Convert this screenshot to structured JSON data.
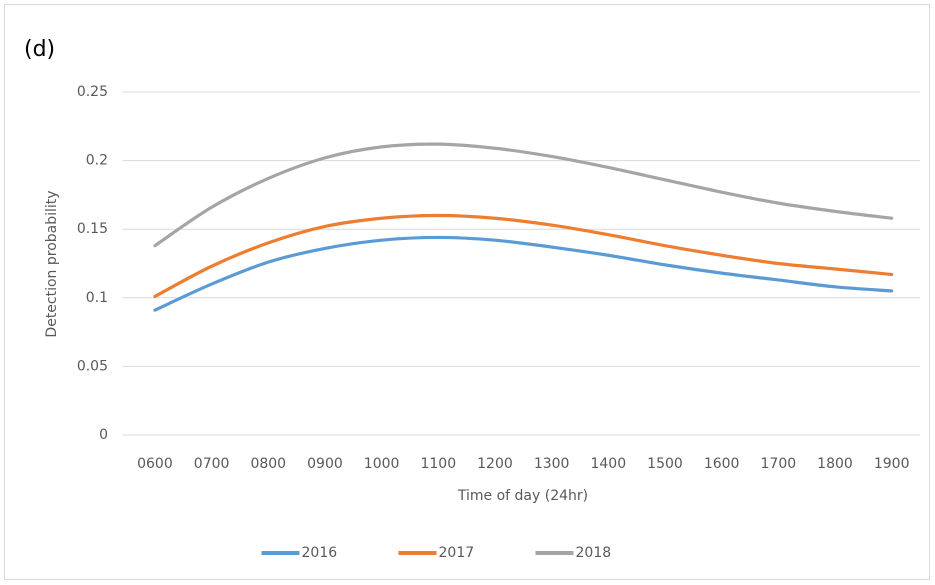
{
  "chart_data": {
    "type": "line",
    "title": "(d)",
    "x_label": "Time of day (24hr)",
    "y_label": "Detection probability",
    "categories": [
      "0600",
      "0700",
      "0800",
      "0900",
      "1000",
      "1100",
      "1200",
      "1300",
      "1400",
      "1500",
      "1600",
      "1700",
      "1800",
      "1900"
    ],
    "series": [
      {
        "name": "2016",
        "color": "#5b9bd5",
        "values": [
          0.091,
          0.11,
          0.126,
          0.136,
          0.142,
          0.144,
          0.142,
          0.137,
          0.131,
          0.124,
          0.118,
          0.113,
          0.108,
          0.105
        ]
      },
      {
        "name": "2017",
        "color": "#ed7d31",
        "values": [
          0.101,
          0.123,
          0.14,
          0.152,
          0.158,
          0.16,
          0.158,
          0.153,
          0.146,
          0.138,
          0.131,
          0.125,
          0.121,
          0.117
        ]
      },
      {
        "name": "2018",
        "color": "#a5a5a5",
        "values": [
          0.138,
          0.166,
          0.187,
          0.202,
          0.21,
          0.212,
          0.209,
          0.203,
          0.195,
          0.186,
          0.177,
          0.169,
          0.163,
          0.158
        ]
      }
    ],
    "ylim": [
      0,
      0.25
    ],
    "yticks": [
      0,
      0.05,
      0.1,
      0.15,
      0.2,
      0.25
    ],
    "grid": true,
    "legend": "bottom"
  }
}
